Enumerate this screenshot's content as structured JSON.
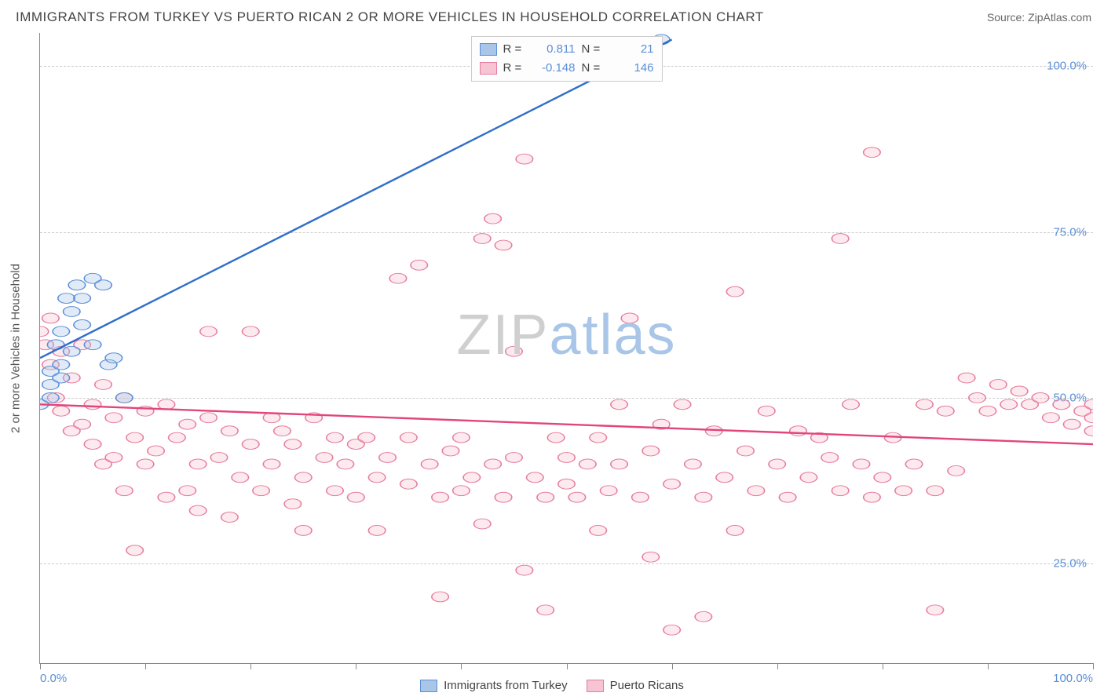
{
  "title": "IMMIGRANTS FROM TURKEY VS PUERTO RICAN 2 OR MORE VEHICLES IN HOUSEHOLD CORRELATION CHART",
  "source_label": "Source: ",
  "source_value": "ZipAtlas.com",
  "ylabel": "2 or more Vehicles in Household",
  "watermark": {
    "part1": "ZIP",
    "part2": "atlas"
  },
  "chart": {
    "type": "scatter",
    "xlim": [
      0,
      100
    ],
    "ylim": [
      10,
      105
    ],
    "x_ticks": [
      0,
      10,
      20,
      30,
      40,
      50,
      60,
      70,
      80,
      90,
      100
    ],
    "x_tick_labels": {
      "0": "0.0%",
      "100": "100.0%"
    },
    "y_gridlines": [
      25,
      50,
      75,
      100
    ],
    "y_tick_labels": {
      "25": "25.0%",
      "50": "50.0%",
      "75": "75.0%",
      "100": "100.0%"
    },
    "grid_color": "#cccccc",
    "axis_color": "#888888",
    "label_color": "#5b8fd6",
    "label_fontsize": 15,
    "marker_radius": 8,
    "marker_opacity": 0.35,
    "series": [
      {
        "name": "Immigrants from Turkey",
        "fill": "#a9c6e8",
        "stroke": "#5b8fd6",
        "line_color": "#2f6ecb",
        "line_width": 2,
        "r": 0.811,
        "n": 21,
        "trend": {
          "x1": 0,
          "y1": 56,
          "x2": 60,
          "y2": 104
        },
        "points": [
          [
            0,
            49
          ],
          [
            1,
            50
          ],
          [
            1,
            52
          ],
          [
            1,
            54
          ],
          [
            1.5,
            58
          ],
          [
            2,
            53
          ],
          [
            2,
            55
          ],
          [
            2,
            60
          ],
          [
            2.5,
            65
          ],
          [
            3,
            57
          ],
          [
            3,
            63
          ],
          [
            3.5,
            67
          ],
          [
            4,
            61
          ],
          [
            4,
            65
          ],
          [
            5,
            58
          ],
          [
            5,
            68
          ],
          [
            6,
            67
          ],
          [
            6.5,
            55
          ],
          [
            7,
            56
          ],
          [
            8,
            50
          ],
          [
            59,
            104
          ]
        ]
      },
      {
        "name": "Puerto Ricans",
        "fill": "#f6c4d2",
        "stroke": "#e67ca0",
        "line_color": "#e2457c",
        "line_width": 2,
        "r": -0.148,
        "n": 146,
        "trend": {
          "x1": 0,
          "y1": 49,
          "x2": 100,
          "y2": 43
        },
        "points": [
          [
            0,
            60
          ],
          [
            0.5,
            58
          ],
          [
            1,
            62
          ],
          [
            1,
            55
          ],
          [
            1.5,
            50
          ],
          [
            2,
            57
          ],
          [
            2,
            48
          ],
          [
            3,
            53
          ],
          [
            3,
            45
          ],
          [
            4,
            46
          ],
          [
            4,
            58
          ],
          [
            5,
            49
          ],
          [
            5,
            43
          ],
          [
            6,
            52
          ],
          [
            6,
            40
          ],
          [
            7,
            47
          ],
          [
            7,
            41
          ],
          [
            8,
            50
          ],
          [
            8,
            36
          ],
          [
            9,
            44
          ],
          [
            9,
            27
          ],
          [
            10,
            48
          ],
          [
            10,
            40
          ],
          [
            11,
            42
          ],
          [
            12,
            35
          ],
          [
            12,
            49
          ],
          [
            13,
            44
          ],
          [
            14,
            36
          ],
          [
            14,
            46
          ],
          [
            15,
            33
          ],
          [
            15,
            40
          ],
          [
            16,
            47
          ],
          [
            16,
            60
          ],
          [
            17,
            41
          ],
          [
            18,
            45
          ],
          [
            18,
            32
          ],
          [
            19,
            38
          ],
          [
            20,
            43
          ],
          [
            20,
            60
          ],
          [
            21,
            36
          ],
          [
            22,
            40
          ],
          [
            22,
            47
          ],
          [
            23,
            45
          ],
          [
            24,
            34
          ],
          [
            24,
            43
          ],
          [
            25,
            38
          ],
          [
            25,
            30
          ],
          [
            26,
            47
          ],
          [
            27,
            41
          ],
          [
            28,
            44
          ],
          [
            28,
            36
          ],
          [
            29,
            40
          ],
          [
            30,
            35
          ],
          [
            30,
            43
          ],
          [
            31,
            44
          ],
          [
            32,
            38
          ],
          [
            32,
            30
          ],
          [
            33,
            41
          ],
          [
            34,
            68
          ],
          [
            35,
            37
          ],
          [
            35,
            44
          ],
          [
            36,
            70
          ],
          [
            37,
            40
          ],
          [
            38,
            35
          ],
          [
            38,
            20
          ],
          [
            39,
            42
          ],
          [
            40,
            36
          ],
          [
            40,
            44
          ],
          [
            41,
            38
          ],
          [
            42,
            74
          ],
          [
            42,
            31
          ],
          [
            43,
            77
          ],
          [
            43,
            40
          ],
          [
            44,
            73
          ],
          [
            44,
            35
          ],
          [
            45,
            41
          ],
          [
            45,
            57
          ],
          [
            46,
            86
          ],
          [
            46,
            24
          ],
          [
            47,
            38
          ],
          [
            48,
            35
          ],
          [
            48,
            18
          ],
          [
            49,
            44
          ],
          [
            50,
            41
          ],
          [
            50,
            37
          ],
          [
            51,
            35
          ],
          [
            52,
            40
          ],
          [
            53,
            30
          ],
          [
            53,
            44
          ],
          [
            54,
            36
          ],
          [
            55,
            49
          ],
          [
            55,
            40
          ],
          [
            56,
            62
          ],
          [
            57,
            35
          ],
          [
            58,
            42
          ],
          [
            58,
            26
          ],
          [
            59,
            46
          ],
          [
            60,
            15
          ],
          [
            60,
            37
          ],
          [
            61,
            49
          ],
          [
            62,
            40
          ],
          [
            63,
            35
          ],
          [
            63,
            17
          ],
          [
            64,
            45
          ],
          [
            65,
            38
          ],
          [
            66,
            66
          ],
          [
            66,
            30
          ],
          [
            67,
            42
          ],
          [
            68,
            36
          ],
          [
            69,
            48
          ],
          [
            70,
            40
          ],
          [
            71,
            35
          ],
          [
            72,
            45
          ],
          [
            73,
            38
          ],
          [
            74,
            44
          ],
          [
            75,
            41
          ],
          [
            76,
            74
          ],
          [
            76,
            36
          ],
          [
            77,
            49
          ],
          [
            78,
            40
          ],
          [
            79,
            35
          ],
          [
            79,
            87
          ],
          [
            80,
            38
          ],
          [
            81,
            44
          ],
          [
            82,
            36
          ],
          [
            83,
            40
          ],
          [
            84,
            49
          ],
          [
            85,
            36
          ],
          [
            85,
            18
          ],
          [
            86,
            48
          ],
          [
            87,
            39
          ],
          [
            88,
            53
          ],
          [
            89,
            50
          ],
          [
            90,
            48
          ],
          [
            91,
            52
          ],
          [
            92,
            49
          ],
          [
            93,
            51
          ],
          [
            94,
            49
          ],
          [
            95,
            50
          ],
          [
            96,
            47
          ],
          [
            97,
            49
          ],
          [
            98,
            46
          ],
          [
            99,
            48
          ],
          [
            100,
            47
          ],
          [
            100,
            45
          ],
          [
            100,
            49
          ]
        ]
      }
    ]
  },
  "legend_top": {
    "r_label": "R =",
    "n_label": "N ="
  },
  "legend_bottom": [
    {
      "label": "Immigrants from Turkey",
      "fill": "#a9c6e8",
      "stroke": "#5b8fd6"
    },
    {
      "label": "Puerto Ricans",
      "fill": "#f6c4d2",
      "stroke": "#e67ca0"
    }
  ]
}
